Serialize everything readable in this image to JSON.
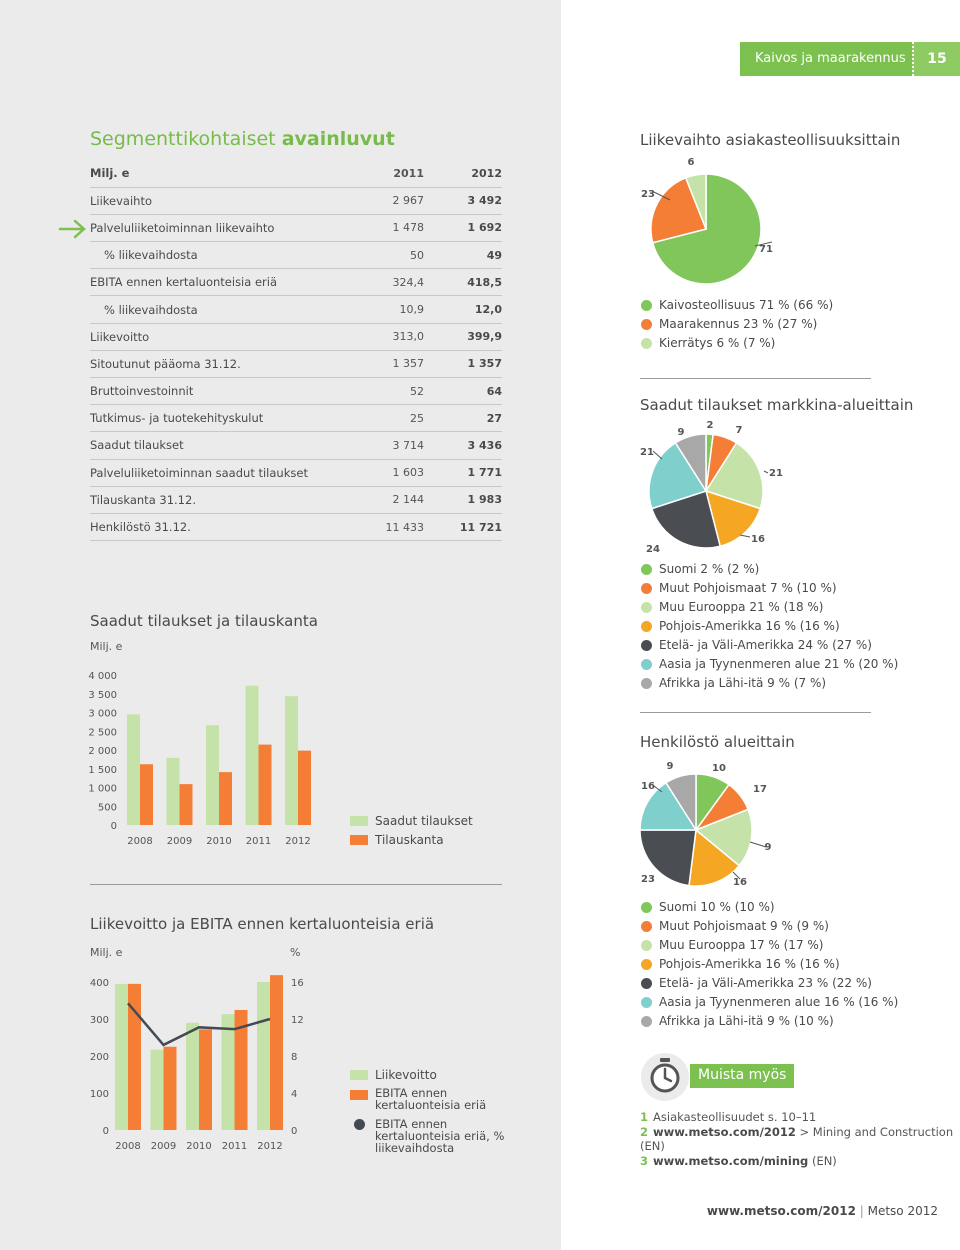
{
  "header": {
    "section": "Kaivos ja maarakennus",
    "page": "15"
  },
  "key_figures": {
    "title_light": "Segmenttikohtaiset",
    "title_bold": "avainluvut",
    "unit": "Milj. e",
    "col1": "2011",
    "col2": "2012",
    "rows": [
      {
        "label": "Liikevaihto",
        "v2011": "2 967",
        "v2012": "3 492"
      },
      {
        "label": "Palveluliiketoiminnan liikevaihto",
        "v2011": "1 478",
        "v2012": "1 692"
      },
      {
        "label": "% liikevaihdosta",
        "v2011": "50",
        "v2012": "49"
      },
      {
        "label": "EBITA ennen kertaluonteisia eriä",
        "v2011": "324,4",
        "v2012": "418,5"
      },
      {
        "label": "% liikevaihdosta",
        "v2011": "10,9",
        "v2012": "12,0"
      },
      {
        "label": "Liikevoitto",
        "v2011": "313,0",
        "v2012": "399,9"
      },
      {
        "label": "Sitoutunut pääoma 31.12.",
        "v2011": "1 357",
        "v2012": "1 357"
      },
      {
        "label": "Bruttoinvestoinnit",
        "v2011": "52",
        "v2012": "64"
      },
      {
        "label": "Tutkimus- ja tuotekehityskulut",
        "v2011": "25",
        "v2012": "27"
      },
      {
        "label": "Saadut tilaukset",
        "v2011": "3 714",
        "v2012": "3 436"
      },
      {
        "label": "Palveluliiketoiminnan saadut tilaukset",
        "v2011": "1 603",
        "v2012": "1 771"
      },
      {
        "label": "Tilauskanta 31.12.",
        "v2011": "2 144",
        "v2012": "1 983"
      },
      {
        "label": "Henkilöstö 31.12.",
        "v2011": "11 433",
        "v2012": "11 721"
      }
    ]
  },
  "chart_data": [
    {
      "type": "bar",
      "title": "Saadut tilaukset ja tilauskanta",
      "ylabel": "Milj. e",
      "categories": [
        "2008",
        "2009",
        "2010",
        "2011",
        "2012"
      ],
      "ylim": [
        0,
        4000
      ],
      "yticks": [
        "4 000",
        "3 500",
        "3 000",
        "2 500",
        "2 000",
        "1 500",
        "1 000",
        "500",
        "0"
      ],
      "series": [
        {
          "name": "Saadut tilaukset",
          "color": "#c5e3a8",
          "values": [
            2950,
            1790,
            2660,
            3714,
            3436
          ]
        },
        {
          "name": "Tilauskanta",
          "color": "#f47e36",
          "values": [
            1620,
            1090,
            1410,
            2144,
            1983
          ]
        }
      ]
    },
    {
      "type": "bar",
      "title": "Liikevoitto ja EBITA ennen kertaluonteisia eriä",
      "ylabel": "Milj. e",
      "y2label": "%",
      "categories": [
        "2008",
        "2009",
        "2010",
        "2011",
        "2012"
      ],
      "ylim": [
        0,
        400
      ],
      "y2lim": [
        0,
        16
      ],
      "yticks": [
        "400",
        "300",
        "200",
        "100",
        "0"
      ],
      "y2ticks": [
        "16",
        "12",
        "8",
        "4",
        "0"
      ],
      "series": [
        {
          "name": "Liikevoitto",
          "color": "#c5e3a8",
          "values": [
            395,
            217,
            290,
            313,
            400
          ]
        },
        {
          "name": "EBITA ennen kertaluonteisia eriä",
          "color": "#f47e36",
          "values": [
            395,
            225,
            272,
            324.4,
            418.5
          ]
        },
        {
          "name": "EBITA ennen kertaluonteisia eriä, % liikevaihdosta",
          "color": "#444a52",
          "type": "line",
          "values": [
            13.7,
            9.2,
            11.1,
            10.9,
            12.0
          ]
        }
      ]
    },
    {
      "type": "pie",
      "title": "Liikevaihto asiakasteollisuuksittain",
      "labels": [
        "Kaivosteollisuus 71 % (66 %)",
        "Maarakennus 23 % (27 %)",
        "Kierrätys 6 % (7 %)"
      ],
      "values": [
        71,
        23,
        6
      ],
      "colors": [
        "#80c65a",
        "#f47e36",
        "#c5e3a8"
      ]
    },
    {
      "type": "pie",
      "title": "Saadut tilaukset markkina-alueittain",
      "labels": [
        "Suomi 2 % (2 %)",
        "Muut Pohjoismaat 7 % (10 %)",
        "Muu Eurooppa 21 % (18 %)",
        "Pohjois-Amerikka 16 % (16 %)",
        "Etelä- ja Väli-Amerikka 24 % (27 %)",
        "Aasia ja Tyynenmeren alue 21 % (20 %)",
        "Afrikka ja Lähi-itä 9 % (7 %)"
      ],
      "values": [
        2,
        7,
        21,
        16,
        24,
        21,
        9
      ],
      "colors": [
        "#80c65a",
        "#f47e36",
        "#c5e3a8",
        "#f5a623",
        "#4a4d52",
        "#7fcfcd",
        "#a8a8a8"
      ]
    },
    {
      "type": "pie",
      "title": "Henkilöstö alueittain",
      "labels": [
        "Suomi 10 % (10 %)",
        "Muut Pohjoismaat 9 % (9 %)",
        "Muu Eurooppa 17 % (17 %)",
        "Pohjois-Amerikka 16 % (16 %)",
        "Etelä- ja Väli-Amerikka 23 % (22 %)",
        "Aasia ja Tyynenmeren alue 16 % (16 %)",
        "Afrikka ja Lähi-itä 9 % (10 %)"
      ],
      "values": [
        10,
        9,
        17,
        16,
        23,
        16,
        9
      ],
      "colors": [
        "#80c65a",
        "#f47e36",
        "#c5e3a8",
        "#f5a623",
        "#4a4d52",
        "#7fcfcd",
        "#a8a8a8"
      ]
    }
  ],
  "muista": {
    "title": "Muista myös",
    "items": [
      {
        "num": "1",
        "bold": "",
        "text": "Asiakasteollisuudet s. 10–11"
      },
      {
        "num": "2",
        "bold": "www.metso.com/2012",
        "text": " > Mining and Construction (EN)"
      },
      {
        "num": "3",
        "bold": "www.metso.com/mining",
        "text": " (EN)"
      }
    ]
  },
  "footer": {
    "url": "www.metso.com/2012",
    "sep": " | ",
    "report": "Metso 2012"
  }
}
